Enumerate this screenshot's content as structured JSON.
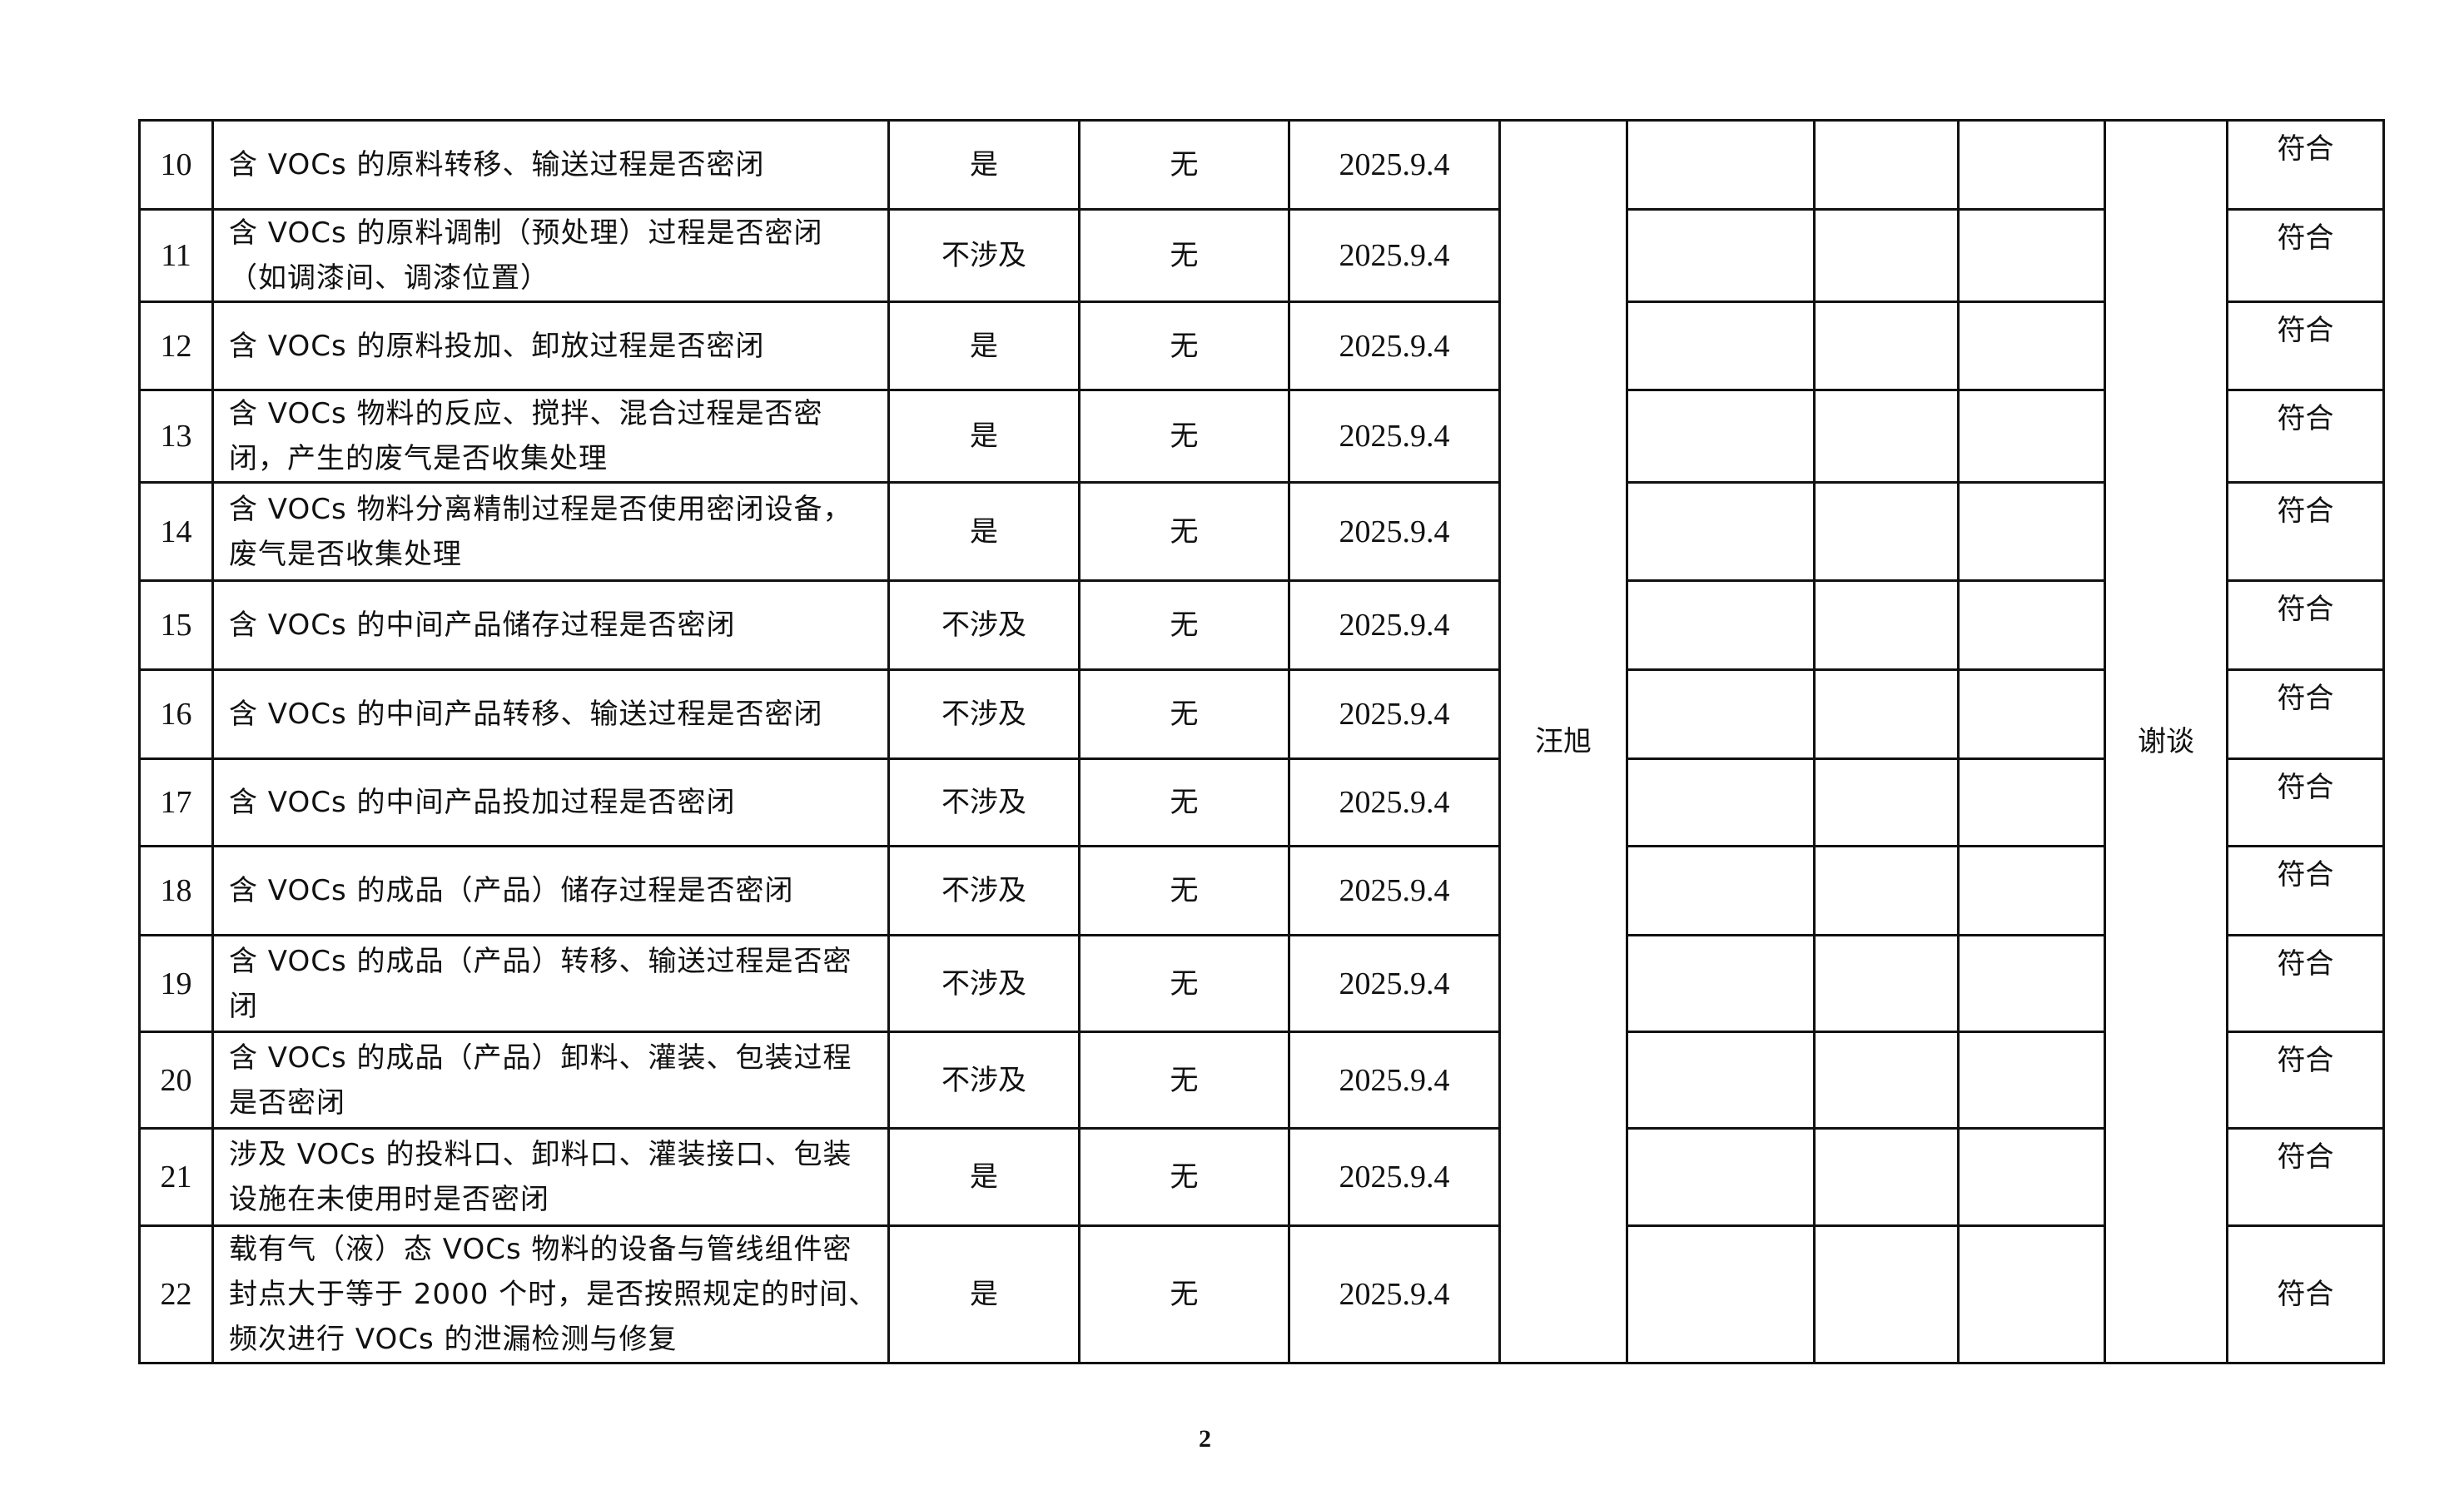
{
  "rows": [
    {
      "no": "10",
      "item": "含 VOCs 的原料转移、输送过程是否密闭",
      "status": "是",
      "issue": "无",
      "date": "2025.9.4",
      "result": "符合"
    },
    {
      "no": "11",
      "item": "含 VOCs 的原料调制（预处理）过程是否密闭（如调漆间、调漆位置）",
      "status": "不涉及",
      "issue": "无",
      "date": "2025.9.4",
      "result": "符合"
    },
    {
      "no": "12",
      "item": "含 VOCs 的原料投加、卸放过程是否密闭",
      "status": "是",
      "issue": "无",
      "date": "2025.9.4",
      "result": "符合"
    },
    {
      "no": "13",
      "item": "含 VOCs 物料的反应、搅拌、混合过程是否密闭，产生的废气是否收集处理",
      "status": "是",
      "issue": "无",
      "date": "2025.9.4",
      "result": "符合"
    },
    {
      "no": "14",
      "item": "含 VOCs 物料分离精制过程是否使用密闭设备，废气是否收集处理",
      "status": "是",
      "issue": "无",
      "date": "2025.9.4",
      "result": "符合"
    },
    {
      "no": "15",
      "item": "含 VOCs 的中间产品储存过程是否密闭",
      "status": "不涉及",
      "issue": "无",
      "date": "2025.9.4",
      "result": "符合"
    },
    {
      "no": "16",
      "item": "含 VOCs 的中间产品转移、输送过程是否密闭",
      "status": "不涉及",
      "issue": "无",
      "date": "2025.9.4",
      "result": "符合"
    },
    {
      "no": "17",
      "item": "含 VOCs 的中间产品投加过程是否密闭",
      "status": "不涉及",
      "issue": "无",
      "date": "2025.9.4",
      "result": "符合"
    },
    {
      "no": "18",
      "item": "含 VOCs 的成品（产品）储存过程是否密闭",
      "status": "不涉及",
      "issue": "无",
      "date": "2025.9.4",
      "result": "符合"
    },
    {
      "no": "19",
      "item": "含 VOCs 的成品（产品）转移、输送过程是否密闭",
      "status": "不涉及",
      "issue": "无",
      "date": "2025.9.4",
      "result": "符合"
    },
    {
      "no": "20",
      "item": "含 VOCs 的成品（产品）卸料、灌装、包装过程是否密闭",
      "status": "不涉及",
      "issue": "无",
      "date": "2025.9.4",
      "result": "符合"
    },
    {
      "no": "21",
      "item": "涉及 VOCs 的投料口、卸料口、灌装接口、包装设施在未使用时是否密闭",
      "status": "是",
      "issue": "无",
      "date": "2025.9.4",
      "result": "符合"
    },
    {
      "no": "22",
      "item": "载有气（液）态 VOCs 物料的设备与管线组件密封点大于等于 2000 个时，是否按照规定的时间、频次进行 VOCs 的泄漏检测与修复",
      "status": "是",
      "issue": "无",
      "date": "2025.9.4",
      "result": "符合"
    }
  ],
  "inspector": "汪旭",
  "method": "谢谈",
  "page_number": "2"
}
